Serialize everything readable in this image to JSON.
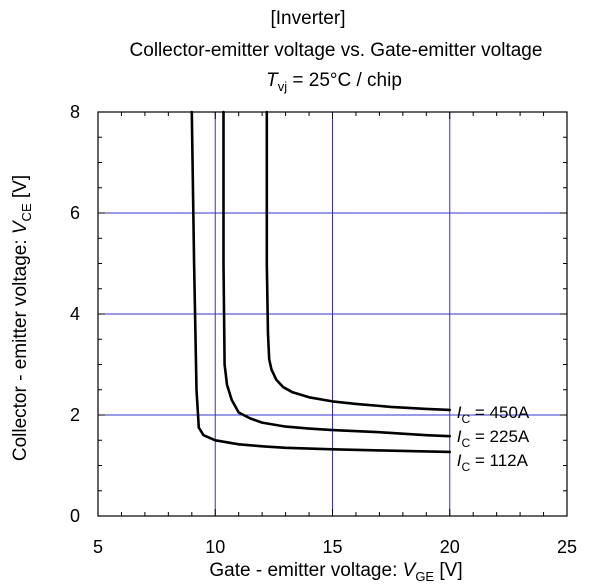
{
  "chart_data": {
    "type": "line",
    "title_lines": [
      "[Inverter]",
      "Collector-emitter voltage vs. Gate-emitter voltage"
    ],
    "condition": {
      "symbol": "T",
      "subscript": "vj",
      "text": " = 25°C / chip"
    },
    "xlabel": {
      "text": "Gate - emitter voltage: ",
      "symbol": "V",
      "subscript": "GE",
      "unit": " [V]"
    },
    "ylabel": {
      "text": "Collector - emitter voltage: ",
      "symbol": "V",
      "subscript": "CE",
      "unit": " [V]"
    },
    "xlim": [
      5,
      25
    ],
    "ylim": [
      0,
      8
    ],
    "xticks": [
      5,
      10,
      15,
      20,
      25
    ],
    "yticks": [
      0,
      2,
      4,
      6,
      8
    ],
    "grid": true,
    "grid_color": "#3333cc",
    "line_color": "#000000",
    "series": [
      {
        "label": {
          "symbol": "I",
          "subscript": "C",
          "text": " = 450A"
        },
        "x": [
          12.2,
          12.2,
          12.25,
          12.3,
          12.4,
          12.6,
          12.9,
          13.3,
          14.0,
          15.0,
          16.0,
          17.5,
          19.0,
          20.0
        ],
        "y": [
          8.0,
          5.0,
          3.6,
          3.1,
          2.9,
          2.7,
          2.55,
          2.45,
          2.35,
          2.27,
          2.22,
          2.16,
          2.12,
          2.1
        ]
      },
      {
        "label": {
          "symbol": "I",
          "subscript": "C",
          "text": " = 225A"
        },
        "x": [
          10.35,
          10.35,
          10.4,
          10.5,
          10.7,
          11.0,
          11.5,
          12.0,
          13.0,
          14.0,
          15.0,
          17.0,
          19.0,
          20.0
        ],
        "y": [
          8.0,
          5.0,
          3.0,
          2.6,
          2.3,
          2.05,
          1.93,
          1.85,
          1.77,
          1.73,
          1.7,
          1.66,
          1.6,
          1.58
        ]
      },
      {
        "label": {
          "symbol": "I",
          "subscript": "C",
          "text": " = 112A"
        },
        "x": [
          9.0,
          9.1,
          9.2,
          9.3,
          9.5,
          10.0,
          11.0,
          12.0,
          13.0,
          15.0,
          17.0,
          19.0,
          20.0
        ],
        "y": [
          8.0,
          5.0,
          2.5,
          1.75,
          1.6,
          1.5,
          1.42,
          1.38,
          1.35,
          1.32,
          1.3,
          1.28,
          1.27
        ]
      }
    ]
  }
}
